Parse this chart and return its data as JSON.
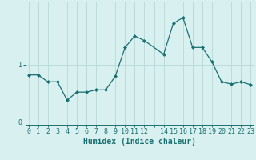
{
  "x": [
    0,
    1,
    2,
    3,
    4,
    5,
    6,
    7,
    8,
    9,
    10,
    11,
    12,
    14,
    15,
    16,
    17,
    18,
    19,
    20,
    21,
    22,
    23
  ],
  "y": [
    0.82,
    0.82,
    0.7,
    0.7,
    0.38,
    0.52,
    0.52,
    0.56,
    0.56,
    0.8,
    1.3,
    1.5,
    1.42,
    1.18,
    1.72,
    1.82,
    1.3,
    1.3,
    1.05,
    0.7,
    0.66,
    0.7,
    0.65
  ],
  "line_color": "#1a7070",
  "marker": "D",
  "marker_size": 2,
  "bg_color": "#d8f0f0",
  "grid_color": "#b8d8d8",
  "xlabel": "Humidex (Indice chaleur)",
  "yticks": [
    0,
    1
  ],
  "ytick_labels": [
    "0",
    "1"
  ],
  "xticks": [
    0,
    1,
    2,
    3,
    4,
    5,
    6,
    7,
    8,
    9,
    10,
    11,
    12,
    13,
    14,
    15,
    16,
    17,
    18,
    19,
    20,
    21,
    22,
    23
  ],
  "xtick_labels": [
    "0",
    "1",
    "2",
    "3",
    "4",
    "5",
    "6",
    "7",
    "8",
    "9",
    "10",
    "11",
    "12",
    "",
    "14",
    "15",
    "16",
    "17",
    "18",
    "19",
    "20",
    "21",
    "22",
    "23"
  ],
  "xlim": [
    -0.3,
    23.3
  ],
  "ylim": [
    -0.05,
    2.1
  ],
  "figsize": [
    3.2,
    2.0
  ],
  "dpi": 100,
  "axis_color": "#1a7070",
  "label_fontsize": 6,
  "xlabel_fontsize": 7
}
